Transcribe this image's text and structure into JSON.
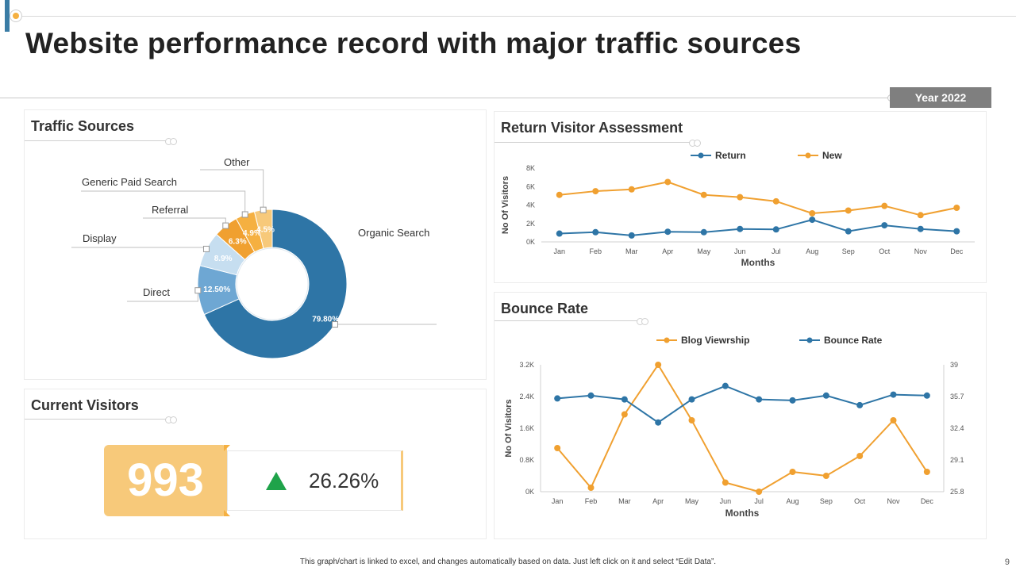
{
  "page": {
    "title": "Website performance record with major traffic sources",
    "year_badge": "Year 2022",
    "footnote": "This graph/chart is linked to excel, and changes automatically based on data. Just left click on it and select “Edit Data”.",
    "page_number": "9"
  },
  "panels": {
    "traffic_title": "Traffic Sources",
    "return_title": "Return Visitor Assessment",
    "visitors_title": "Current Visitors",
    "bounce_title": "Bounce Rate"
  },
  "current_visitors": {
    "value": "993",
    "change": "26.26%",
    "trend": "up",
    "trend_color": "#1fa34a"
  },
  "colors": {
    "dark_blue": "#2e75a6",
    "mid_blue": "#6ea7d3",
    "light_blue": "#c6def0",
    "orange": "#f0a030",
    "dark_orange": "#e8a540",
    "light_orange": "#f7c97a"
  },
  "chart_data": [
    {
      "id": "traffic-sources",
      "type": "pie",
      "donut": true,
      "categories": [
        "Organic Search",
        "Direct",
        "Display",
        "Referral",
        "Generic Paid Search",
        "Other"
      ],
      "values": [
        79.8,
        12.5,
        8.9,
        6.3,
        4.9,
        4.5
      ],
      "value_labels": [
        "79.80%",
        "12.50%",
        "8.9%",
        "6.3%",
        "4.9%",
        "4.5%"
      ],
      "colors": [
        "#2e75a6",
        "#6ea7d3",
        "#c6def0",
        "#f0a030",
        "#f5b041",
        "#f7c97a"
      ],
      "title": "Traffic Sources"
    },
    {
      "id": "return-visitors",
      "type": "line",
      "title": "Return Visitor Assessment",
      "categories": [
        "Jan",
        "Feb",
        "Mar",
        "Apr",
        "May",
        "Jun",
        "Jul",
        "Aug",
        "Sep",
        "Oct",
        "Nov",
        "Dec"
      ],
      "series": [
        {
          "name": "Return",
          "color": "#2e75a6",
          "values": [
            900,
            1050,
            700,
            1100,
            1050,
            1400,
            1350,
            2400,
            1150,
            1800,
            1400,
            1150
          ]
        },
        {
          "name": "New",
          "color": "#f0a030",
          "values": [
            5100,
            5500,
            5700,
            6500,
            5100,
            4850,
            4400,
            3100,
            3400,
            3900,
            2900,
            3700
          ]
        }
      ],
      "xlabel": "Months",
      "ylabel": "No Of Visitors",
      "ylim": [
        0,
        8000
      ],
      "yticks": [
        0,
        2000,
        4000,
        6000,
        8000
      ],
      "ytick_labels": [
        "0K",
        "2K",
        "4K",
        "6K",
        "8K"
      ],
      "legend": "top",
      "grid": false
    },
    {
      "id": "bounce-rate",
      "type": "line",
      "title": "Bounce Rate",
      "categories": [
        "Jan",
        "Feb",
        "Mar",
        "Apr",
        "May",
        "Jun",
        "Jul",
        "Aug",
        "Sep",
        "Oct",
        "Nov",
        "Dec"
      ],
      "series": [
        {
          "name": "Blog Viewrship",
          "color": "#f0a030",
          "axis": "left",
          "values": [
            1100,
            100,
            1950,
            3200,
            1800,
            230,
            0,
            500,
            400,
            900,
            1800,
            500
          ]
        },
        {
          "name": "Bounce Rate",
          "color": "#2e75a6",
          "axis": "right",
          "values": [
            35.5,
            35.8,
            35.4,
            33.0,
            35.4,
            36.8,
            35.4,
            35.3,
            35.8,
            34.8,
            35.9,
            35.8
          ]
        }
      ],
      "xlabel": "Months",
      "ylabel": "No Of Visitors",
      "ylim": [
        0,
        3200
      ],
      "yticks": [
        0,
        800,
        1600,
        2400,
        3200
      ],
      "ytick_labels": [
        "0K",
        "0.8K",
        "1.6K",
        "2.4K",
        "3.2K"
      ],
      "y2lim": [
        25.8,
        39
      ],
      "y2ticks": [
        25.8,
        29.1,
        32.4,
        35.7,
        39
      ],
      "y2tick_labels": [
        "25.8",
        "29.1",
        "32.4",
        "35.7",
        "39"
      ],
      "legend": "top",
      "grid": false
    }
  ]
}
